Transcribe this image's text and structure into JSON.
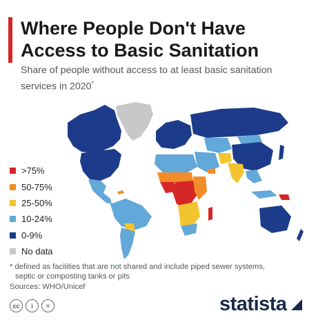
{
  "header": {
    "title_line1": "Where People Don't Have",
    "title_line2": "Access to Basic Sanitation",
    "subtitle_line1": "Share of people without access to at least basic sanitation",
    "subtitle_line2": "services in 2020",
    "subtitle_marker": "*"
  },
  "legend": {
    "items": [
      {
        "label": ">75%",
        "color": "#d62728"
      },
      {
        "label": "50-75%",
        "color": "#f28c28"
      },
      {
        "label": "25-50%",
        "color": "#f2c530"
      },
      {
        "label": "10-24%",
        "color": "#62a8d8"
      },
      {
        "label": "0-9%",
        "color": "#1c3b8a"
      },
      {
        "label": "No data",
        "color": "#c8c8c8"
      }
    ]
  },
  "footer": {
    "footnote_line1": "* defined as facilities that are not shared and include piped sewer systems,",
    "footnote_line2": "septic or composting tanks or pits",
    "sources": "Sources: WHO/Unicef",
    "license_icons": [
      "cc-icon",
      "attribution-icon",
      "no-derivatives-icon"
    ],
    "cc_text": "cc",
    "by_text": "i",
    "nd_text": "=",
    "brand": "statista"
  },
  "colors": {
    "accent": "#d62728",
    "brand_navy": "#1a2b49",
    "over_75": "#d62728",
    "range_50_75": "#f28c28",
    "range_25_50": "#f2c530",
    "range_10_24": "#62a8d8",
    "range_0_9": "#1c3b8a",
    "no_data": "#c8c8c8"
  }
}
